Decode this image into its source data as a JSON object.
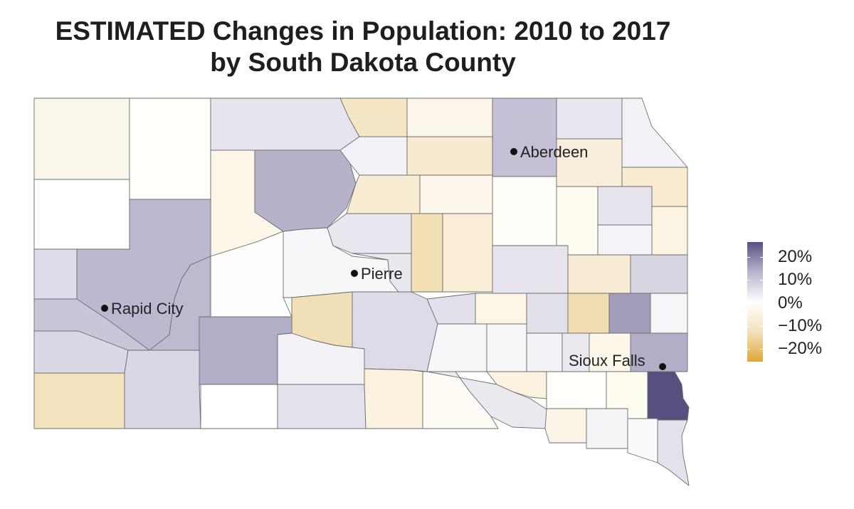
{
  "title": {
    "line1": "ESTIMATED Changes in Population: 2010 to 2017",
    "line2": "by South Dakota County"
  },
  "colors": {
    "outline": "#6d6d6d",
    "strong_gain": "#5a5180",
    "gain": "#b8b3cb",
    "slight_gain": "#e4e2ec",
    "neutral": "#ffffff",
    "slight_loss": "#fbf3e2",
    "loss": "#f3e1bb",
    "strong_loss": "#dfa837"
  },
  "cities": [
    {
      "name": "Aberdeen"
    },
    {
      "name": "Pierre"
    },
    {
      "name": "Rapid City"
    },
    {
      "name": "Sioux Falls"
    }
  ],
  "legend": {
    "labels": [
      "20%",
      "10%",
      "0%",
      "−10%",
      "−20%"
    ],
    "gradient": [
      "#5a5180",
      "#b8b3cb",
      "#ffffff",
      "#f3e1bb",
      "#dfa837"
    ]
  }
}
